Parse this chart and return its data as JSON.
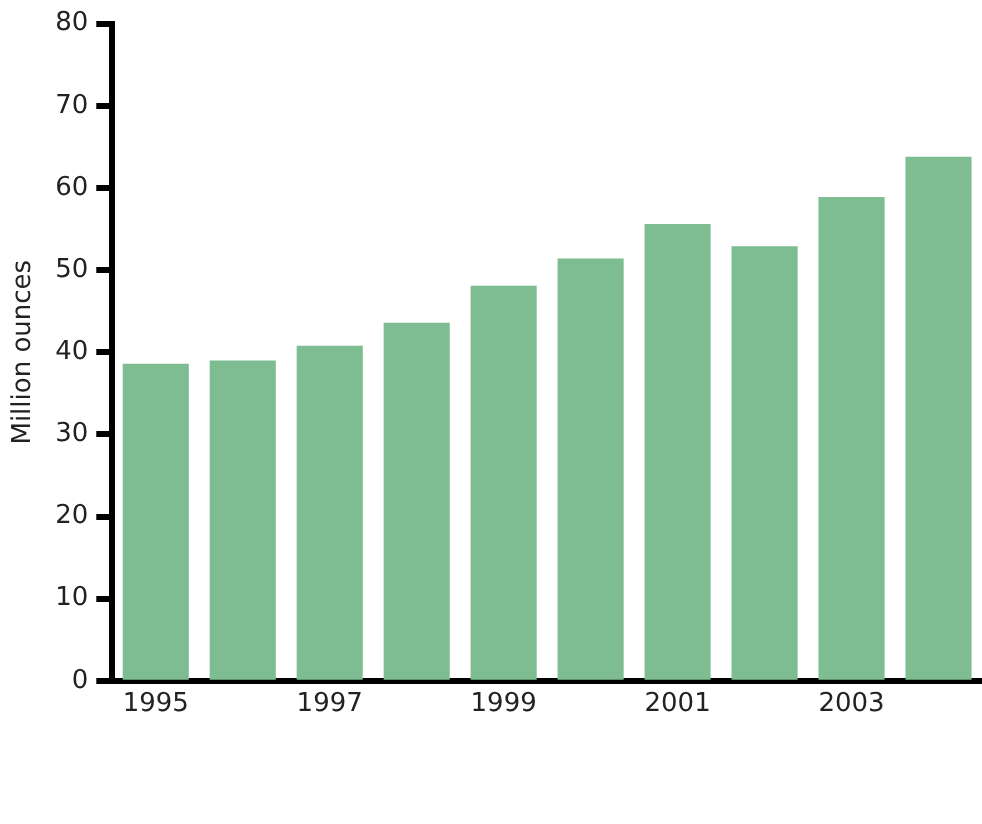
{
  "chart_data": {
    "type": "bar",
    "ylabel": "Million ounces",
    "categories": [
      "1995",
      null,
      "1997",
      null,
      "1999",
      null,
      "2001",
      null,
      "2003",
      null
    ],
    "values": [
      38.6,
      39.0,
      40.8,
      43.6,
      48.1,
      51.4,
      55.6,
      52.9,
      58.9,
      63.8
    ],
    "color": "#7dbd91",
    "ylim": [
      0,
      80
    ],
    "yticks": [
      0,
      10,
      20,
      30,
      40,
      50,
      60,
      70,
      80
    ],
    "grid": false,
    "legend": false
  }
}
